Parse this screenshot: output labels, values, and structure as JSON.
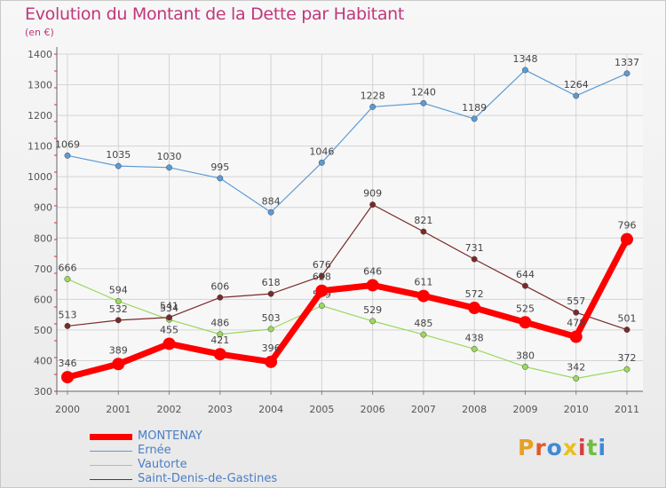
{
  "title": "Evolution du Montant de la Dette par Habitant",
  "subtitle": "(en €)",
  "logo": {
    "text": "Proxiti",
    "colors": [
      "#e8a020",
      "#e05a2b",
      "#3f8ad6",
      "#e8c020",
      "#d63f3f",
      "#6fbf3f",
      "#3f8ad6"
    ]
  },
  "chart_data": {
    "type": "line",
    "x": [
      "2000",
      "2001",
      "2002",
      "2003",
      "2004",
      "2005",
      "2006",
      "2007",
      "2008",
      "2009",
      "2010",
      "2011"
    ],
    "ylim": [
      300,
      1400
    ],
    "yticks": [
      300,
      400,
      500,
      600,
      700,
      800,
      900,
      1000,
      1100,
      1200,
      1300,
      1400
    ],
    "grid": true,
    "legend_position": "bottom-left",
    "series": [
      {
        "name": "Ernée",
        "color": "#5b9bd5",
        "values": [
          1069,
          1035,
          1030,
          995,
          884,
          1046,
          1228,
          1240,
          1189,
          1348,
          1264,
          1337
        ],
        "labels": [
          "1069",
          "1035",
          "1030",
          "995",
          "884",
          "1046",
          "1228",
          "1240",
          "1189",
          "1348",
          "1264",
          "1337"
        ]
      },
      {
        "name": "Vautorte",
        "color": "#9ad95b",
        "values": [
          666,
          594,
          534,
          486,
          503,
          579,
          529,
          485,
          438,
          380,
          342,
          372
        ],
        "labels": [
          "666",
          "594",
          "534",
          "486",
          "503",
          "579",
          "529",
          "485",
          "438",
          "380",
          "342",
          "372"
        ]
      },
      {
        "name": "Saint-Denis-de-Gastines",
        "color": "#7a2a2a",
        "values": [
          513,
          532,
          541,
          606,
          618,
          676,
          909,
          821,
          731,
          644,
          557,
          501
        ],
        "labels": [
          "513",
          "532",
          "541",
          "606",
          "618",
          "676",
          "909",
          "821",
          "731",
          "644",
          "557",
          "501"
        ]
      },
      {
        "name": "MONTENAY",
        "color": "#ff0000",
        "values": [
          346,
          389,
          455,
          421,
          396,
          628,
          646,
          611,
          572,
          525,
          478,
          796
        ],
        "labels": [
          "346",
          "389",
          "455",
          "421",
          "396",
          "628",
          "646",
          "611",
          "572",
          "525",
          "478",
          "796"
        ]
      }
    ]
  }
}
